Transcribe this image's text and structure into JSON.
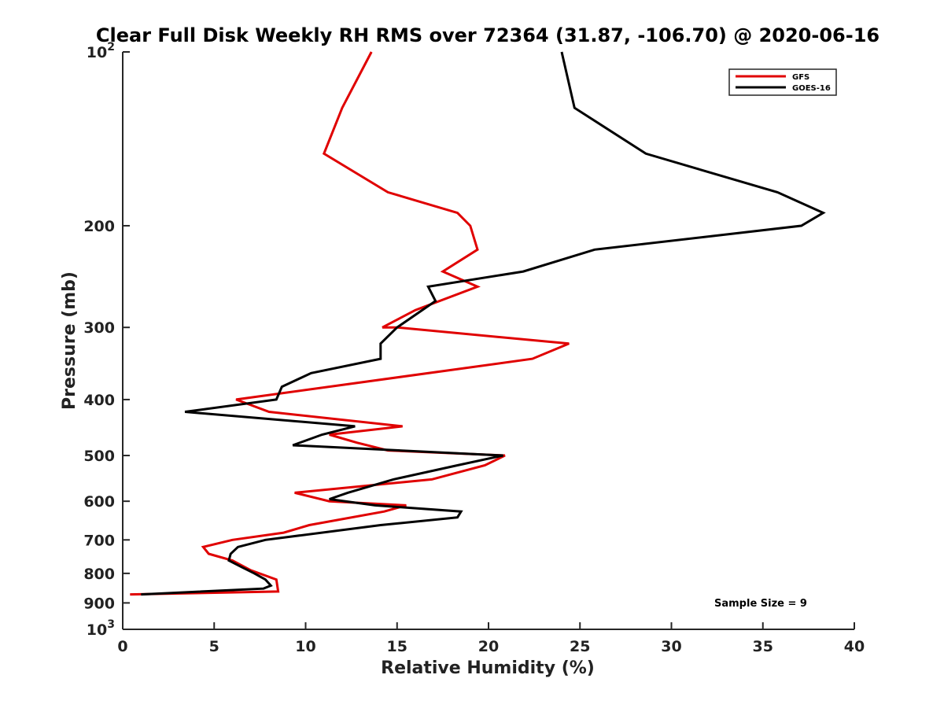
{
  "chart_data": {
    "type": "line",
    "title": "Clear Full Disk Weekly RH RMS over 72364 (31.87, -106.70) @ 2020-06-16",
    "xlabel": "Relative Humidity (%)",
    "ylabel": "Pressure (mb)",
    "xlim": [
      0,
      40
    ],
    "ylim": [
      100,
      1000
    ],
    "yscale": "log",
    "y_inverted": true,
    "x_ticks": [
      0,
      5,
      10,
      15,
      20,
      25,
      30,
      35,
      40
    ],
    "x_tick_labels": [
      "0",
      "5",
      "10",
      "15",
      "20",
      "25",
      "30",
      "35",
      "40"
    ],
    "y_ticks": [
      100,
      200,
      300,
      400,
      500,
      600,
      700,
      800,
      900,
      1000
    ],
    "y_tick_labels": [
      {
        "base": "10",
        "exp": "2"
      },
      {
        "base": "200",
        "exp": ""
      },
      {
        "base": "300",
        "exp": ""
      },
      {
        "base": "400",
        "exp": ""
      },
      {
        "base": "500",
        "exp": ""
      },
      {
        "base": "600",
        "exp": ""
      },
      {
        "base": "700",
        "exp": ""
      },
      {
        "base": "800",
        "exp": ""
      },
      {
        "base": "900",
        "exp": ""
      },
      {
        "base": "10",
        "exp": "3"
      }
    ],
    "grid": false,
    "legend_position": "top-right",
    "annotation": "Sample Size = 9",
    "series": [
      {
        "name": "GFS",
        "color": "#e00000",
        "points": [
          [
            13.6,
            100
          ],
          [
            12.0,
            125
          ],
          [
            11.0,
            150
          ],
          [
            14.5,
            175
          ],
          [
            18.3,
            190
          ],
          [
            19.0,
            200
          ],
          [
            19.4,
            220
          ],
          [
            17.5,
            240
          ],
          [
            19.4,
            255
          ],
          [
            16.0,
            280
          ],
          [
            14.2,
            300
          ],
          [
            15.0,
            300
          ],
          [
            24.4,
            320
          ],
          [
            22.4,
            340
          ],
          [
            6.2,
            400
          ],
          [
            8.0,
            420
          ],
          [
            15.3,
            445
          ],
          [
            11.3,
            460
          ],
          [
            12.8,
            475
          ],
          [
            14.5,
            490
          ],
          [
            20.9,
            500
          ],
          [
            19.8,
            520
          ],
          [
            16.9,
            550
          ],
          [
            9.4,
            580
          ],
          [
            11.3,
            600
          ],
          [
            15.5,
            610
          ],
          [
            14.3,
            625
          ],
          [
            10.2,
            660
          ],
          [
            8.8,
            680
          ],
          [
            6.0,
            700
          ],
          [
            4.4,
            720
          ],
          [
            4.7,
            740
          ],
          [
            6.0,
            760
          ],
          [
            7.0,
            790
          ],
          [
            8.4,
            820
          ],
          [
            8.5,
            860
          ],
          [
            0.4,
            870
          ]
        ]
      },
      {
        "name": "GOES-16",
        "color": "#000000",
        "points": [
          [
            24.0,
            100
          ],
          [
            24.7,
            125
          ],
          [
            28.6,
            150
          ],
          [
            35.8,
            175
          ],
          [
            38.3,
            190
          ],
          [
            37.1,
            200
          ],
          [
            25.8,
            220
          ],
          [
            21.9,
            240
          ],
          [
            16.7,
            255
          ],
          [
            17.1,
            270
          ],
          [
            15.0,
            300
          ],
          [
            14.1,
            320
          ],
          [
            14.1,
            340
          ],
          [
            10.3,
            360
          ],
          [
            8.7,
            380
          ],
          [
            8.4,
            400
          ],
          [
            3.4,
            420
          ],
          [
            12.7,
            445
          ],
          [
            10.9,
            460
          ],
          [
            9.3,
            480
          ],
          [
            20.8,
            500
          ],
          [
            18.3,
            520
          ],
          [
            14.8,
            550
          ],
          [
            12.3,
            580
          ],
          [
            11.3,
            595
          ],
          [
            13.8,
            610
          ],
          [
            18.5,
            625
          ],
          [
            18.3,
            640
          ],
          [
            14.1,
            660
          ],
          [
            7.8,
            700
          ],
          [
            6.3,
            720
          ],
          [
            5.9,
            740
          ],
          [
            5.8,
            760
          ],
          [
            6.5,
            780
          ],
          [
            7.2,
            800
          ],
          [
            7.8,
            820
          ],
          [
            8.1,
            840
          ],
          [
            7.7,
            850
          ],
          [
            1.0,
            870
          ]
        ]
      }
    ]
  }
}
